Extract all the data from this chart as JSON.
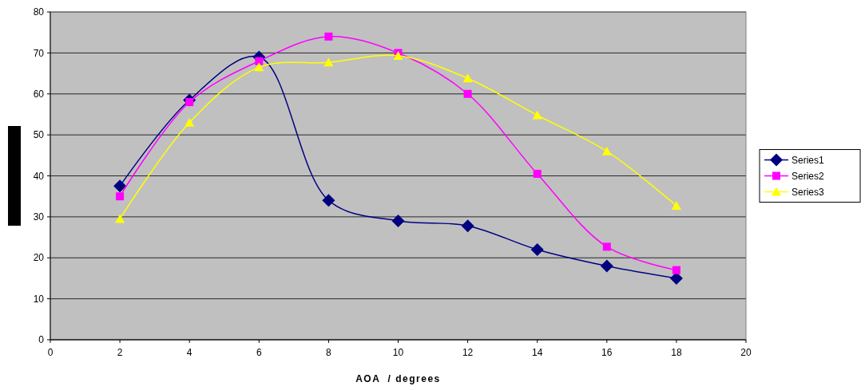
{
  "chart_data": {
    "type": "line",
    "xlabel": "AOA  / degrees",
    "x": [
      2,
      4,
      6,
      8,
      10,
      12,
      14,
      16,
      18
    ],
    "series": [
      {
        "name": "Series1",
        "color": "#000080",
        "marker": "diamond",
        "values": [
          37.5,
          58.5,
          69,
          34,
          29,
          27.8,
          22,
          18,
          15
        ]
      },
      {
        "name": "Series2",
        "color": "#ff00ff",
        "marker": "square",
        "values": [
          35,
          58,
          68,
          74,
          70,
          60,
          40.5,
          22.7,
          17
        ]
      },
      {
        "name": "Series3",
        "color": "#ffff00",
        "marker": "triangle",
        "values": [
          29.5,
          53,
          66.5,
          67.7,
          69.3,
          63.8,
          54.8,
          46,
          32.7
        ]
      }
    ],
    "xlim": [
      0,
      20
    ],
    "xticks": [
      0,
      2,
      4,
      6,
      8,
      10,
      12,
      14,
      16,
      18,
      20
    ],
    "ylim": [
      0,
      80
    ],
    "yticks": [
      0,
      10,
      20,
      30,
      40,
      50,
      60,
      70,
      80
    ],
    "grid": "y",
    "legend": "right"
  }
}
